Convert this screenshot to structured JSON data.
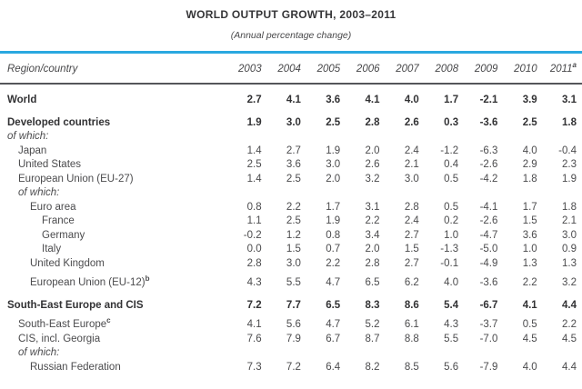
{
  "title": "WORLD OUTPUT GROWTH, 2003–2011",
  "subtitle": "(Annual percentage change)",
  "colors": {
    "accent_rule": "#29a8e0",
    "header_rule": "#55565a",
    "text": "#4b4b4d",
    "text_bold": "#323234"
  },
  "table": {
    "label_header": "Region/country",
    "year_headers": [
      "2003",
      "2004",
      "2005",
      "2006",
      "2007",
      "2008",
      "2009",
      "2010",
      "2011"
    ],
    "last_year_footnote": "a",
    "rows": [
      {
        "label": "World",
        "style": "bold",
        "indent": 0,
        "values": [
          "2.7",
          "4.1",
          "3.6",
          "4.1",
          "4.0",
          "1.7",
          "-2.1",
          "3.9",
          "3.1"
        ]
      },
      {
        "label": "Developed countries",
        "style": "bold",
        "indent": 0,
        "values": [
          "1.9",
          "3.0",
          "2.5",
          "2.8",
          "2.6",
          "0.3",
          "-3.6",
          "2.5",
          "1.8"
        ]
      },
      {
        "label": "of which:",
        "style": "italic",
        "indent": 0,
        "values": []
      },
      {
        "label": "Japan",
        "style": "normal",
        "indent": 1,
        "values": [
          "1.4",
          "2.7",
          "1.9",
          "2.0",
          "2.4",
          "-1.2",
          "-6.3",
          "4.0",
          "-0.4"
        ]
      },
      {
        "label": "United States",
        "style": "normal",
        "indent": 1,
        "values": [
          "2.5",
          "3.6",
          "3.0",
          "2.6",
          "2.1",
          "0.4",
          "-2.6",
          "2.9",
          "2.3"
        ]
      },
      {
        "label": "European Union (EU-27)",
        "style": "normal",
        "indent": 1,
        "values": [
          "1.4",
          "2.5",
          "2.0",
          "3.2",
          "3.0",
          "0.5",
          "-4.2",
          "1.8",
          "1.9"
        ]
      },
      {
        "label": "of which:",
        "style": "italic",
        "indent": 1,
        "values": []
      },
      {
        "label": "Euro area",
        "style": "normal",
        "indent": 2,
        "values": [
          "0.8",
          "2.2",
          "1.7",
          "3.1",
          "2.8",
          "0.5",
          "-4.1",
          "1.7",
          "1.8"
        ]
      },
      {
        "label": "France",
        "style": "normal",
        "indent": 3,
        "values": [
          "1.1",
          "2.5",
          "1.9",
          "2.2",
          "2.4",
          "0.2",
          "-2.6",
          "1.5",
          "2.1"
        ]
      },
      {
        "label": "Germany",
        "style": "normal",
        "indent": 3,
        "values": [
          "-0.2",
          "1.2",
          "0.8",
          "3.4",
          "2.7",
          "1.0",
          "-4.7",
          "3.6",
          "3.0"
        ]
      },
      {
        "label": "Italy",
        "style": "normal",
        "indent": 3,
        "values": [
          "0.0",
          "1.5",
          "0.7",
          "2.0",
          "1.5",
          "-1.3",
          "-5.0",
          "1.0",
          "0.9"
        ]
      },
      {
        "label": "United Kingdom",
        "style": "normal",
        "indent": 2,
        "values": [
          "2.8",
          "3.0",
          "2.2",
          "2.8",
          "2.7",
          "-0.1",
          "-4.9",
          "1.3",
          "1.3"
        ]
      },
      {
        "label": "European Union (EU-12)",
        "footnote": "b",
        "style": "normal",
        "indent": 2,
        "values": [
          "4.3",
          "5.5",
          "4.7",
          "6.5",
          "6.2",
          "4.0",
          "-3.6",
          "2.2",
          "3.2"
        ]
      },
      {
        "label": "South-East Europe and CIS",
        "style": "bold",
        "indent": 0,
        "values": [
          "7.2",
          "7.7",
          "6.5",
          "8.3",
          "8.6",
          "5.4",
          "-6.7",
          "4.1",
          "4.4"
        ]
      },
      {
        "label": "South-East Europe",
        "footnote": "c",
        "style": "normal",
        "indent": 1,
        "values": [
          "4.1",
          "5.6",
          "4.7",
          "5.2",
          "6.1",
          "4.3",
          "-3.7",
          "0.5",
          "2.2"
        ]
      },
      {
        "label": "CIS, incl. Georgia",
        "style": "normal",
        "indent": 1,
        "values": [
          "7.6",
          "7.9",
          "6.7",
          "8.7",
          "8.8",
          "5.5",
          "-7.0",
          "4.5",
          "4.5"
        ]
      },
      {
        "label": "of which:",
        "style": "italic",
        "indent": 1,
        "values": []
      },
      {
        "label": "Russian Federation",
        "style": "normal",
        "indent": 2,
        "values": [
          "7.3",
          "7.2",
          "6.4",
          "8.2",
          "8.5",
          "5.6",
          "-7.9",
          "4.0",
          "4.4"
        ]
      }
    ]
  }
}
